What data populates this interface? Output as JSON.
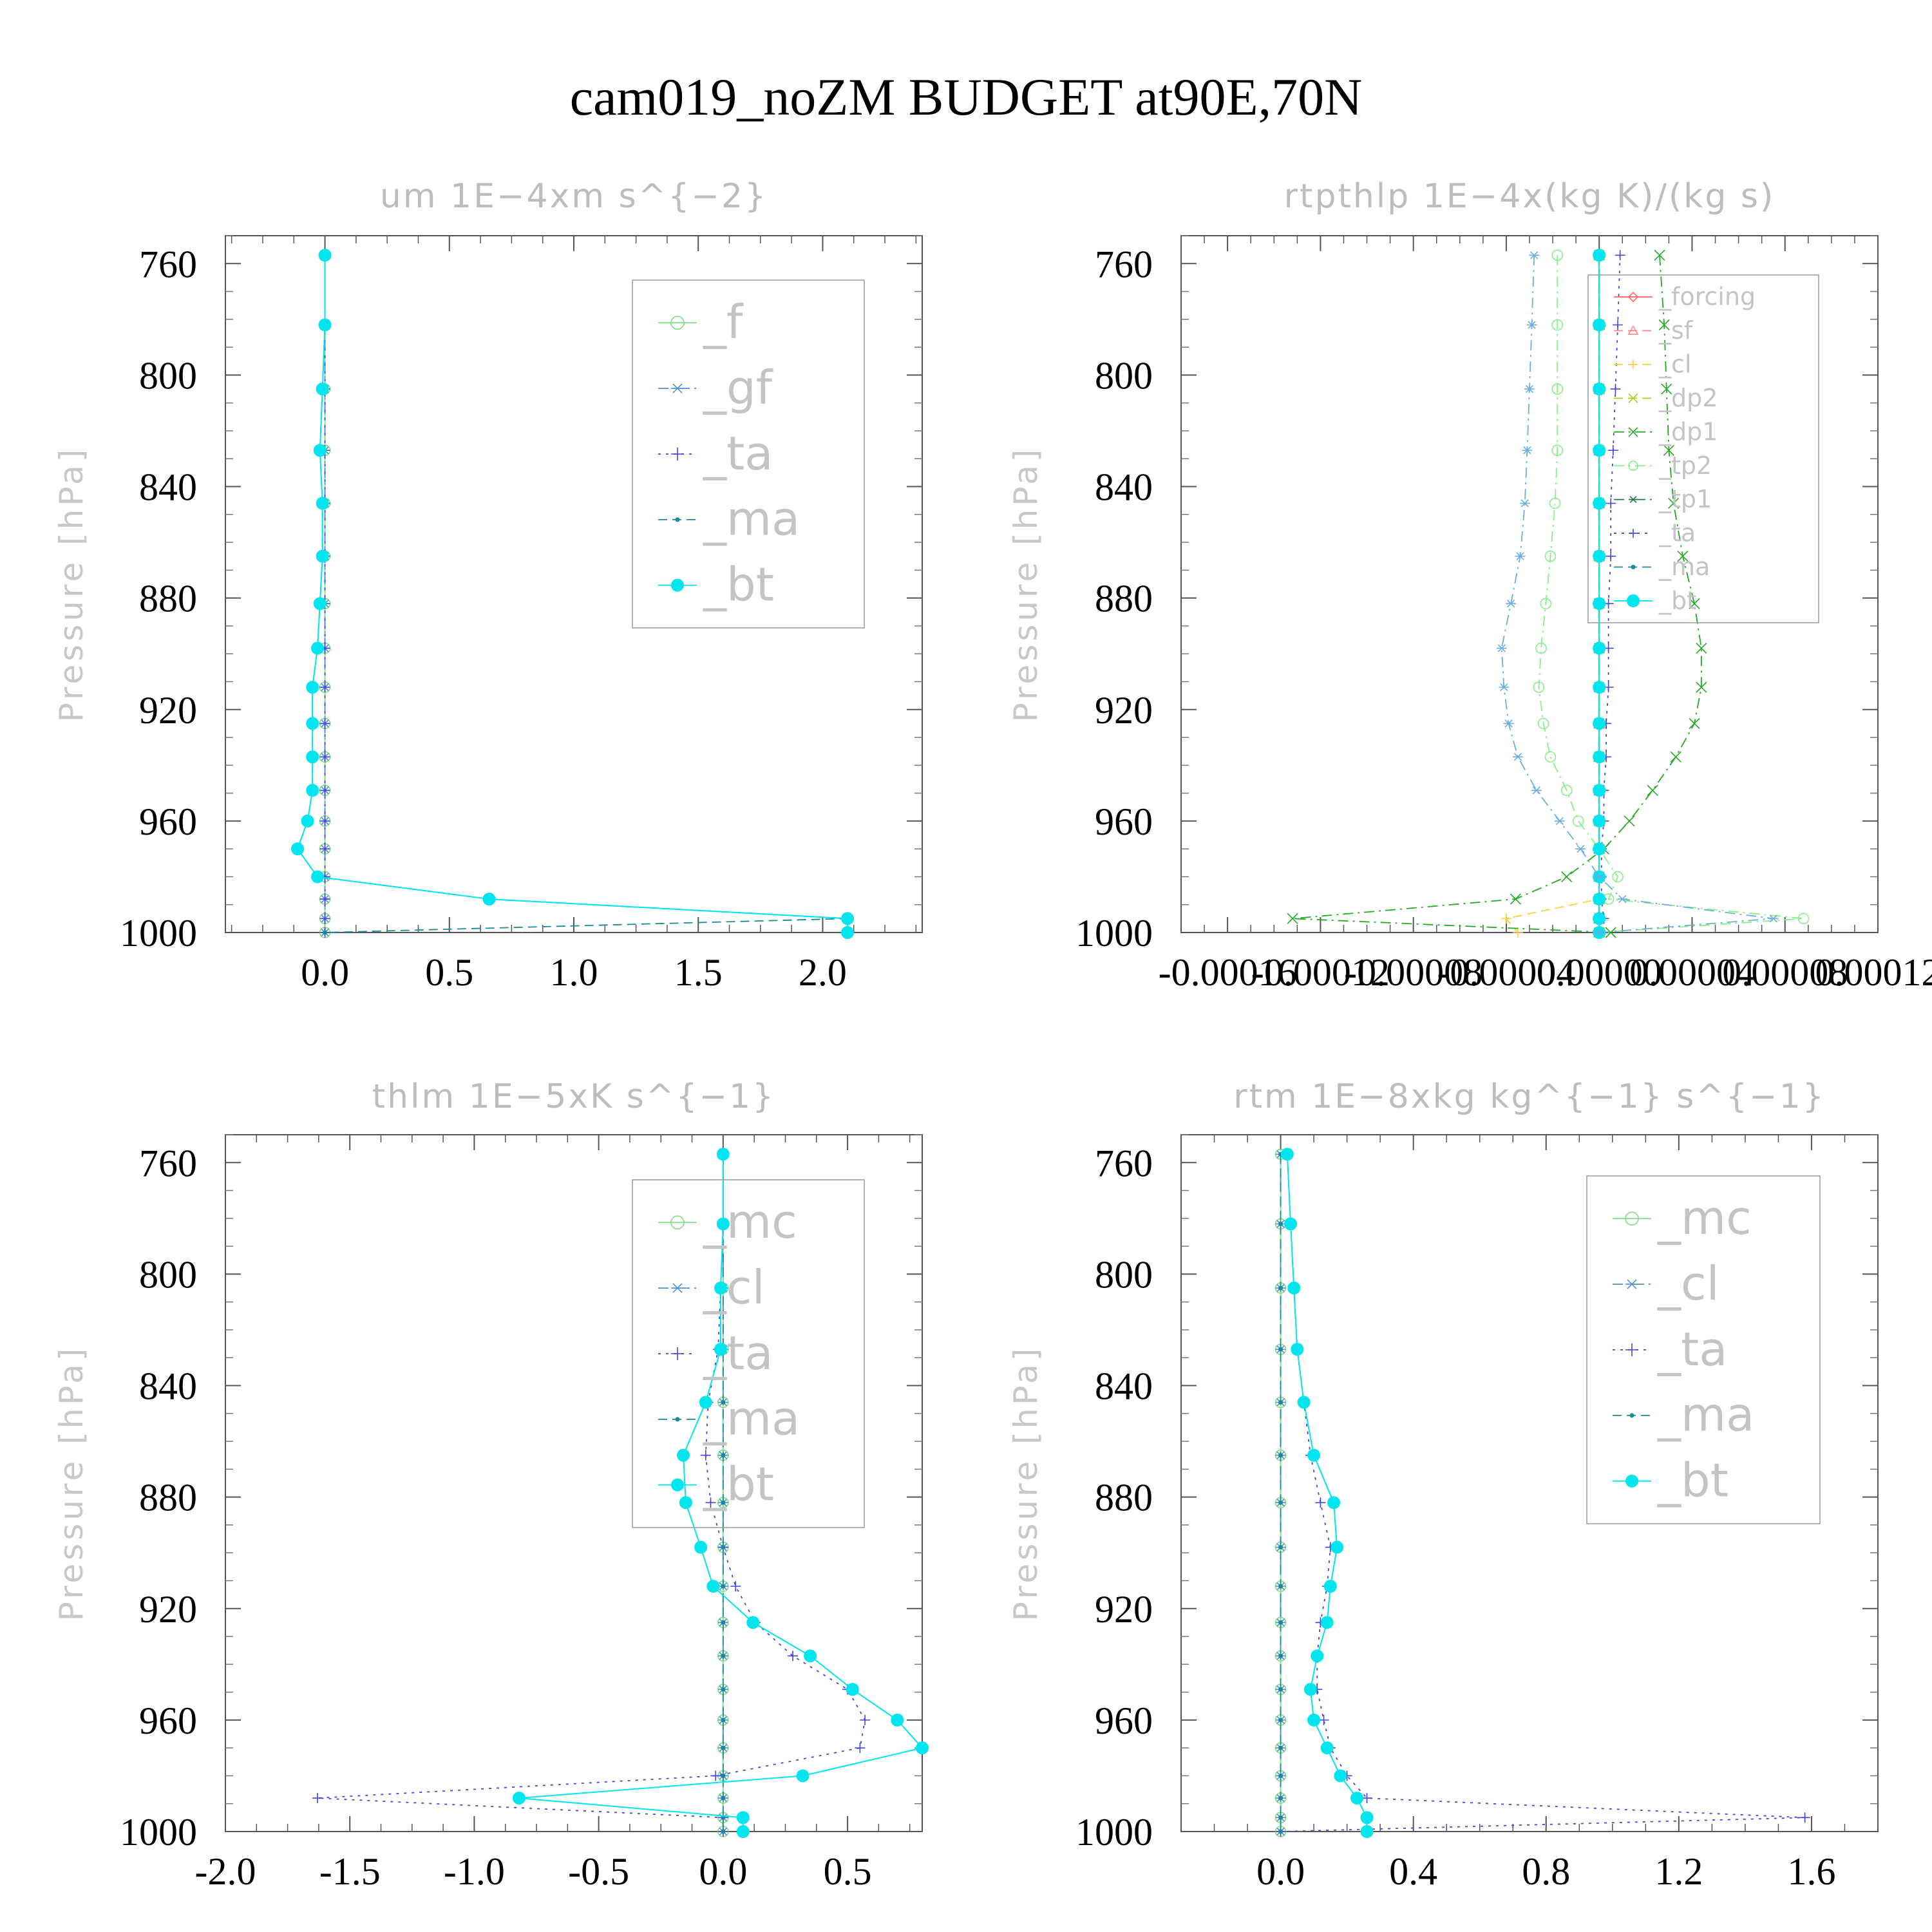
{
  "figure": {
    "title": "cam019_noZM  BUDGET at90E,70N"
  },
  "chart_data": [
    {
      "type": "line",
      "title": "um   1E−4xm s^{−2}",
      "ylabel": "Pressure [hPa]",
      "xlabel": "",
      "xlim": [
        -0.4,
        2.4
      ],
      "ylim": [
        1000,
        750
      ],
      "xticks": [
        0.0,
        0.5,
        1.0,
        1.5,
        2.0
      ],
      "xtick_labels": [
        "0.0",
        "0.5",
        "1.0",
        "1.5",
        "2.0"
      ],
      "yticks": [
        760,
        800,
        840,
        880,
        920,
        960,
        1000
      ],
      "ytick_labels": [
        "760",
        "800",
        "840",
        "880",
        "920",
        "960",
        "1000"
      ],
      "levels": [
        757,
        782,
        805,
        827,
        846,
        865,
        882,
        898,
        912,
        925,
        937,
        949,
        960,
        970,
        980,
        988,
        995,
        1000
      ],
      "legend": {
        "position": "top-right",
        "font_size": 72
      },
      "series": [
        {
          "name": "_f",
          "color": "#7fdf7f",
          "style": "solid",
          "marker": "circle",
          "values": [
            0,
            0,
            0,
            0,
            0,
            0,
            0,
            0,
            0,
            0,
            0,
            0,
            0,
            0,
            0,
            0,
            0,
            0
          ]
        },
        {
          "name": "_gf",
          "color": "#4f8fd0",
          "style": "dashdot",
          "marker": "asterisk",
          "values": [
            0,
            0,
            0,
            0,
            0,
            0,
            0,
            0,
            0,
            0,
            0,
            0,
            0,
            0,
            0,
            0,
            0,
            0
          ]
        },
        {
          "name": "_ta",
          "color": "#4444dd",
          "style": "dotted",
          "marker": "plus",
          "values": [
            0,
            0,
            0,
            0,
            0,
            0,
            0,
            0,
            0,
            0,
            0,
            0,
            0,
            0,
            0,
            0,
            0,
            0
          ]
        },
        {
          "name": "_ma",
          "color": "#1a8a9a",
          "style": "dashed",
          "marker": "dot",
          "values": [
            0.0,
            0.0,
            -0.01,
            -0.02,
            -0.01,
            -0.01,
            -0.02,
            -0.03,
            -0.05,
            -0.05,
            -0.05,
            -0.05,
            -0.07,
            -0.11,
            -0.03,
            0.66,
            2.1,
            0.0
          ]
        },
        {
          "name": "_bt",
          "color": "#00e5ee",
          "style": "solid",
          "marker": "bigdot",
          "values": [
            0.0,
            0.0,
            -0.01,
            -0.02,
            -0.01,
            -0.01,
            -0.02,
            -0.03,
            -0.05,
            -0.05,
            -0.05,
            -0.05,
            -0.07,
            -0.11,
            -0.03,
            0.66,
            2.1,
            2.1
          ]
        }
      ]
    },
    {
      "type": "line",
      "title": "rtpthlp   1E−4x(kg K)/(kg s)",
      "ylabel": "Pressure [hPa]",
      "xlabel": "",
      "xlim": [
        -0.00018,
        0.00012
      ],
      "ylim": [
        1000,
        750
      ],
      "xticks": [
        -0.00016,
        -0.00012,
        -8e-05,
        -4e-05,
        0.0,
        4e-05,
        8e-05,
        0.00012
      ],
      "xtick_labels": [
        "-0.00016",
        "-0.00012",
        "-0.00008",
        "-0.00004",
        "0.00000",
        "0.00004",
        "0.00008",
        "0.00012"
      ],
      "yticks": [
        760,
        800,
        840,
        880,
        920,
        960,
        1000
      ],
      "ytick_labels": [
        "760",
        "800",
        "840",
        "880",
        "920",
        "960",
        "1000"
      ],
      "levels": [
        757,
        782,
        805,
        827,
        846,
        865,
        882,
        898,
        912,
        925,
        937,
        949,
        960,
        970,
        980,
        988,
        995,
        1000
      ],
      "legend": {
        "position": "top-right",
        "font_size": 38
      },
      "series": [
        {
          "name": "_forcing",
          "color": "#ff6666",
          "style": "solid",
          "marker": "diamond",
          "values": [
            0,
            0,
            0,
            0,
            0,
            0,
            0,
            0,
            0,
            0,
            0,
            0,
            0,
            0,
            0,
            0,
            0,
            0
          ]
        },
        {
          "name": "_sf",
          "color": "#ff8888",
          "style": "dashed",
          "marker": "triangle",
          "values": [
            0,
            0,
            0,
            0,
            0,
            0,
            0,
            0,
            0,
            0,
            0,
            0,
            0,
            0,
            0,
            0,
            0,
            0
          ]
        },
        {
          "name": "_cl",
          "color": "#ffd040",
          "style": "dashed",
          "marker": "plus",
          "values": [
            0,
            0,
            0,
            0,
            0,
            0,
            0,
            0,
            0,
            0,
            0,
            0,
            0,
            0,
            0,
            0,
            -4e-05,
            -3.5e-05
          ]
        },
        {
          "name": "_dp2",
          "color": "#a8d020",
          "style": "dashed",
          "marker": "x",
          "values": [
            0,
            0,
            0,
            0,
            0,
            0,
            0,
            0,
            0,
            0,
            0,
            0,
            0,
            0,
            0,
            0,
            0,
            0
          ]
        },
        {
          "name": "_dp1",
          "color": "#22aa22",
          "style": "dashdot",
          "marker": "x",
          "values": [
            2.6e-05,
            2.8e-05,
            2.9e-05,
            3e-05,
            3.2e-05,
            3.6e-05,
            4.1e-05,
            4.4e-05,
            4.4e-05,
            4.1e-05,
            3.3e-05,
            2.3e-05,
            1.3e-05,
            2e-06,
            -1.4e-05,
            -3.6e-05,
            -0.000132,
            5e-06
          ]
        },
        {
          "name": "_tp2",
          "color": "#88ee88",
          "style": "dashdot",
          "marker": "circle",
          "values": [
            -1.8e-05,
            -1.8e-05,
            -1.8e-05,
            -1.8e-05,
            -1.9e-05,
            -2.1e-05,
            -2.3e-05,
            -2.5e-05,
            -2.6e-05,
            -2.4e-05,
            -2.1e-05,
            -1.4e-05,
            -9e-06,
            0.0,
            8e-06,
            4e-06,
            8.8e-05,
            0.0
          ]
        },
        {
          "name": "_tp1",
          "color": "#1a7a4a",
          "style": "dashdot",
          "marker": "asterisk",
          "values": [
            0,
            0,
            0,
            0,
            0,
            0,
            0,
            0,
            0,
            0,
            0,
            0,
            0,
            0,
            0,
            0,
            0,
            0
          ]
        },
        {
          "name": "_ta",
          "color": "#4444dd",
          "style": "dotted",
          "marker": "plus",
          "values": [
            9e-06,
            8e-06,
            7e-06,
            6e-06,
            5e-06,
            5e-06,
            4e-06,
            4e-06,
            4e-06,
            3e-06,
            3e-06,
            2e-06,
            2e-06,
            1e-06,
            1e-06,
            1e-06,
            2e-06,
            0.0
          ]
        },
        {
          "name": "_ma",
          "color": "#1a8a9a",
          "style": "dashed",
          "marker": "dot",
          "values": [
            0,
            0,
            0,
            0,
            0,
            0,
            0,
            0,
            0,
            0,
            0,
            0,
            0,
            0,
            0,
            0,
            0,
            0
          ]
        },
        {
          "name": "_bt",
          "color": "#00e5ee",
          "style": "solid",
          "marker": "bigdot",
          "values": [
            0,
            0,
            0,
            0,
            0,
            0,
            0,
            0,
            0,
            0,
            0,
            0,
            0,
            0,
            0,
            0,
            0,
            0
          ]
        },
        {
          "name": "",
          "color": "#6aaee0",
          "style": "dashdot",
          "marker": "asterisk",
          "values": [
            -2.8e-05,
            -2.9e-05,
            -3e-05,
            -3.1e-05,
            -3.2e-05,
            -3.4e-05,
            -3.8e-05,
            -4.2e-05,
            -4.1e-05,
            -3.9e-05,
            -3.5e-05,
            -2.7e-05,
            -1.7e-05,
            -8e-06,
            0.0,
            1e-05,
            7.5e-05,
            0.0
          ]
        }
      ]
    },
    {
      "type": "line",
      "title": "thlm   1E−5xK s^{−1}",
      "ylabel": "Pressure [hPa]",
      "xlabel": "",
      "xlim": [
        -2.0,
        0.8
      ],
      "ylim": [
        1000,
        750
      ],
      "xticks": [
        -2.0,
        -1.5,
        -1.0,
        -0.5,
        0.0,
        0.5
      ],
      "xtick_labels": [
        "-2.0",
        "-1.5",
        "-1.0",
        "-0.5",
        "0.0",
        "0.5"
      ],
      "yticks": [
        760,
        800,
        840,
        880,
        920,
        960,
        1000
      ],
      "ytick_labels": [
        "760",
        "800",
        "840",
        "880",
        "920",
        "960",
        "1000"
      ],
      "levels": [
        757,
        782,
        805,
        827,
        846,
        865,
        882,
        898,
        912,
        925,
        937,
        949,
        960,
        970,
        980,
        988,
        995,
        1000
      ],
      "legend": {
        "position": "top-right",
        "font_size": 72
      },
      "series": [
        {
          "name": "_mc",
          "color": "#7fdf7f",
          "style": "solid",
          "marker": "circle",
          "values": [
            0,
            0,
            0,
            0,
            0,
            0,
            0,
            0,
            0,
            0,
            0,
            0,
            0,
            0,
            0,
            0,
            0,
            0
          ]
        },
        {
          "name": "_cl",
          "color": "#4f8fd0",
          "style": "dashdot",
          "marker": "asterisk",
          "values": [
            0,
            0,
            0,
            0,
            0,
            0,
            0,
            0,
            0,
            0,
            0,
            0,
            0,
            0,
            0,
            0,
            0,
            0
          ]
        },
        {
          "name": "_ta",
          "color": "#4444dd",
          "style": "dotted",
          "marker": "plus",
          "values": [
            0.0,
            0.0,
            -0.01,
            -0.02,
            -0.06,
            -0.07,
            -0.05,
            0.0,
            0.05,
            0.13,
            0.28,
            0.5,
            0.57,
            0.55,
            -0.03,
            -1.63,
            0.0,
            0.0
          ]
        },
        {
          "name": "_ma",
          "color": "#1a8a9a",
          "style": "dashed",
          "marker": "dot",
          "values": [
            0,
            0,
            0,
            0,
            0,
            0,
            0,
            0,
            0,
            0,
            0,
            0,
            0,
            0,
            0,
            0,
            0,
            0
          ]
        },
        {
          "name": "_bt",
          "color": "#00e5ee",
          "style": "solid",
          "marker": "bigdot",
          "values": [
            0.0,
            0.0,
            -0.01,
            -0.01,
            -0.07,
            -0.16,
            -0.15,
            -0.09,
            -0.04,
            0.12,
            0.35,
            0.52,
            0.7,
            0.8,
            0.32,
            -0.82,
            0.08,
            0.08
          ]
        }
      ]
    },
    {
      "type": "line",
      "title": "rtm   1E−8xkg kg^{−1} s^{−1}",
      "ylabel": "Pressure [hPa]",
      "xlabel": "",
      "xlim": [
        -0.3,
        1.8
      ],
      "ylim": [
        1000,
        750
      ],
      "xticks": [
        0.0,
        0.4,
        0.8,
        1.2,
        1.6
      ],
      "xtick_labels": [
        "0.0",
        "0.4",
        "0.8",
        "1.2",
        "1.6"
      ],
      "yticks": [
        760,
        800,
        840,
        880,
        920,
        960,
        1000
      ],
      "ytick_labels": [
        "760",
        "800",
        "840",
        "880",
        "920",
        "960",
        "1000"
      ],
      "levels": [
        757,
        782,
        805,
        827,
        846,
        865,
        882,
        898,
        912,
        925,
        937,
        949,
        960,
        970,
        980,
        988,
        995,
        1000
      ],
      "legend": {
        "position": "top-right",
        "font_size": 72
      },
      "series": [
        {
          "name": "_mc",
          "color": "#7fdf7f",
          "style": "solid",
          "marker": "circle",
          "values": [
            0,
            0,
            0,
            0,
            0,
            0,
            0,
            0,
            0,
            0,
            0,
            0,
            0,
            0,
            0,
            0,
            0,
            0
          ]
        },
        {
          "name": "_cl",
          "color": "#4f8fd0",
          "style": "dashdot",
          "marker": "asterisk",
          "values": [
            0,
            0,
            0,
            0,
            0,
            0,
            0,
            0,
            0,
            0,
            0,
            0,
            0,
            0,
            0,
            0,
            0,
            0
          ]
        },
        {
          "name": "_ta",
          "color": "#4444dd",
          "style": "dotted",
          "marker": "plus",
          "values": [
            0.02,
            0.03,
            0.04,
            0.05,
            0.07,
            0.09,
            0.12,
            0.15,
            0.14,
            0.12,
            0.11,
            0.11,
            0.13,
            0.15,
            0.2,
            0.26,
            1.58,
            0.0
          ]
        },
        {
          "name": "_ma",
          "color": "#1a8a9a",
          "style": "dashed",
          "marker": "dot",
          "values": [
            0,
            0,
            0,
            0,
            0,
            0,
            0,
            0,
            0,
            0,
            0,
            0,
            0,
            0,
            0,
            0,
            0,
            0
          ]
        },
        {
          "name": "_bt",
          "color": "#00e5ee",
          "style": "solid",
          "marker": "bigdot",
          "values": [
            0.02,
            0.03,
            0.04,
            0.05,
            0.07,
            0.1,
            0.16,
            0.17,
            0.15,
            0.14,
            0.11,
            0.09,
            0.1,
            0.14,
            0.18,
            0.23,
            0.26,
            0.26
          ]
        }
      ]
    }
  ]
}
